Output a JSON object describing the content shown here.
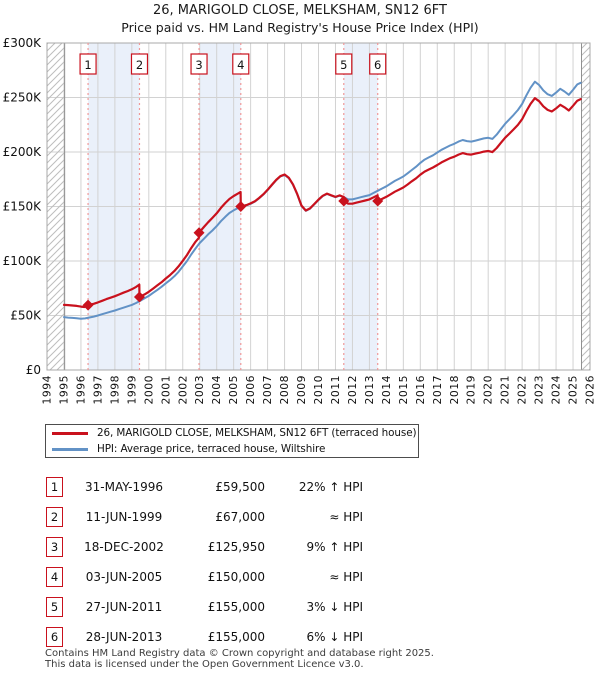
{
  "page": {
    "title": "26, MARIGOLD CLOSE, MELKSHAM, SN12 6FT",
    "subtitle": "Price paid vs. HM Land Registry's House Price Index (HPI)"
  },
  "legend": {
    "items": [
      {
        "label": "26, MARIGOLD CLOSE, MELKSHAM, SN12 6FT (terraced house)",
        "color": "#c9111d"
      },
      {
        "label": "HPI: Average price, terraced house, Wiltshire",
        "color": "#6292c6"
      }
    ]
  },
  "table": {
    "rows": [
      {
        "num": "1",
        "date": "31-MAY-1996",
        "price": "£59,500",
        "delta": "22% ↑ HPI"
      },
      {
        "num": "2",
        "date": "11-JUN-1999",
        "price": "£67,000",
        "delta": "≈ HPI"
      },
      {
        "num": "3",
        "date": "18-DEC-2002",
        "price": "£125,950",
        "delta": "9% ↑ HPI"
      },
      {
        "num": "4",
        "date": "03-JUN-2005",
        "price": "£150,000",
        "delta": "≈ HPI"
      },
      {
        "num": "5",
        "date": "27-JUN-2011",
        "price": "£155,000",
        "delta": "3% ↓ HPI"
      },
      {
        "num": "6",
        "date": "28-JUN-2013",
        "price": "£155,000",
        "delta": "6% ↓ HPI"
      }
    ]
  },
  "footer": {
    "line1": "Contains HM Land Registry data © Crown copyright and database right 2025.",
    "line2": "This data is licensed under the Open Government Licence v3.0."
  },
  "chart_data": {
    "type": "line",
    "title": "26, MARIGOLD CLOSE, MELKSHAM, SN12 6FT",
    "subtitle": "Price paid vs. HM Land Registry's House Price Index (HPI)",
    "xlabel": "",
    "ylabel": "",
    "units": "GBP thousands",
    "grid": true,
    "legend_position": "below",
    "x_axis": {
      "min": 1994,
      "max": 2026,
      "ticks": [
        1994,
        1995,
        1996,
        1997,
        1998,
        1999,
        2000,
        2001,
        2002,
        2003,
        2004,
        2005,
        2006,
        2007,
        2008,
        2009,
        2010,
        2011,
        2012,
        2013,
        2014,
        2015,
        2016,
        2017,
        2018,
        2019,
        2020,
        2021,
        2022,
        2023,
        2024,
        2025,
        2026
      ]
    },
    "y_axis": {
      "min_k": 0,
      "max_k": 300,
      "tick_values_k": [
        0,
        50,
        100,
        150,
        200,
        250,
        300
      ],
      "tick_labels": [
        "£0",
        "£50K",
        "£100K",
        "£150K",
        "£200K",
        "£250K",
        "£300K"
      ]
    },
    "colors": {
      "price_paid": "#c9111d",
      "hpi": "#6292c6",
      "band": "#eaf0fa",
      "dashed": "#f09898",
      "grid": "#d2d2d2",
      "frame": "#a8a8a8",
      "hatch": "#bdbdbd",
      "hatch_edge": "#8f8f8f",
      "text": "#111111"
    },
    "ownership_bands": [
      [
        1996.42,
        1999.45
      ],
      [
        2002.96,
        2005.42
      ],
      [
        2011.49,
        2013.49
      ]
    ],
    "no_data_bands": [
      [
        1994,
        1995.04
      ],
      [
        2025.5,
        2026
      ]
    ],
    "sale_markers": [
      {
        "n": "1",
        "year": 1996.42,
        "price_k": 59.5
      },
      {
        "n": "2",
        "year": 1999.45,
        "price_k": 67.0
      },
      {
        "n": "3",
        "year": 2002.96,
        "price_k": 125.95
      },
      {
        "n": "4",
        "year": 2005.42,
        "price_k": 150.0
      },
      {
        "n": "5",
        "year": 2011.49,
        "price_k": 155.0
      },
      {
        "n": "6",
        "year": 2013.49,
        "price_k": 155.0
      }
    ],
    "series": [
      {
        "key": "hpi",
        "name": "HPI: Average price, terraced house, Wiltshire",
        "color": "#6292c6",
        "points": [
          [
            1995.0,
            48.5
          ],
          [
            1995.25,
            48.1
          ],
          [
            1995.5,
            47.8
          ],
          [
            1995.75,
            47.4
          ],
          [
            1996.0,
            47.1
          ],
          [
            1996.25,
            47.3
          ],
          [
            1996.5,
            48.2
          ],
          [
            1996.75,
            49.0
          ],
          [
            1997.0,
            50.0
          ],
          [
            1997.25,
            51.2
          ],
          [
            1997.5,
            52.4
          ],
          [
            1997.75,
            53.5
          ],
          [
            1998.0,
            54.6
          ],
          [
            1998.25,
            55.9
          ],
          [
            1998.5,
            57.2
          ],
          [
            1998.75,
            58.4
          ],
          [
            1999.0,
            59.7
          ],
          [
            1999.25,
            61.5
          ],
          [
            1999.5,
            63.6
          ],
          [
            1999.75,
            65.8
          ],
          [
            2000.0,
            68.0
          ],
          [
            2000.25,
            70.8
          ],
          [
            2000.5,
            73.5
          ],
          [
            2000.75,
            76.3
          ],
          [
            2001.0,
            79.5
          ],
          [
            2001.25,
            82.5
          ],
          [
            2001.5,
            86.0
          ],
          [
            2001.75,
            90.0
          ],
          [
            2002.0,
            95.0
          ],
          [
            2002.25,
            100.0
          ],
          [
            2002.5,
            106.0
          ],
          [
            2002.75,
            111.5
          ],
          [
            2003.0,
            116.5
          ],
          [
            2003.25,
            120.5
          ],
          [
            2003.5,
            124.5
          ],
          [
            2003.75,
            128.0
          ],
          [
            2004.0,
            132.0
          ],
          [
            2004.25,
            136.5
          ],
          [
            2004.5,
            140.5
          ],
          [
            2004.75,
            144.0
          ],
          [
            2005.0,
            146.5
          ],
          [
            2005.25,
            148.5
          ],
          [
            2005.5,
            150.0
          ],
          [
            2005.75,
            151.0
          ],
          [
            2006.0,
            152.5
          ],
          [
            2006.25,
            154.5
          ],
          [
            2006.5,
            157.5
          ],
          [
            2006.75,
            161.0
          ],
          [
            2007.0,
            165.0
          ],
          [
            2007.25,
            169.5
          ],
          [
            2007.5,
            174.0
          ],
          [
            2007.75,
            177.5
          ],
          [
            2008.0,
            179.0
          ],
          [
            2008.25,
            176.0
          ],
          [
            2008.5,
            170.0
          ],
          [
            2008.75,
            161.0
          ],
          [
            2009.0,
            150.5
          ],
          [
            2009.25,
            146.0
          ],
          [
            2009.5,
            148.0
          ],
          [
            2009.75,
            152.0
          ],
          [
            2010.0,
            156.0
          ],
          [
            2010.25,
            159.5
          ],
          [
            2010.5,
            161.5
          ],
          [
            2010.75,
            160.0
          ],
          [
            2011.0,
            158.5
          ],
          [
            2011.25,
            160.0
          ],
          [
            2011.5,
            158.5
          ],
          [
            2011.75,
            156.5
          ],
          [
            2012.0,
            156.5
          ],
          [
            2012.25,
            157.5
          ],
          [
            2012.5,
            158.5
          ],
          [
            2012.75,
            159.5
          ],
          [
            2013.0,
            160.5
          ],
          [
            2013.25,
            162.5
          ],
          [
            2013.5,
            164.5
          ],
          [
            2013.75,
            166.5
          ],
          [
            2014.0,
            168.5
          ],
          [
            2014.25,
            171.0
          ],
          [
            2014.5,
            173.5
          ],
          [
            2014.75,
            175.5
          ],
          [
            2015.0,
            177.5
          ],
          [
            2015.25,
            180.5
          ],
          [
            2015.5,
            183.5
          ],
          [
            2015.75,
            186.5
          ],
          [
            2016.0,
            190.0
          ],
          [
            2016.25,
            193.0
          ],
          [
            2016.5,
            195.0
          ],
          [
            2016.75,
            197.0
          ],
          [
            2017.0,
            199.5
          ],
          [
            2017.25,
            202.0
          ],
          [
            2017.5,
            204.0
          ],
          [
            2017.75,
            206.0
          ],
          [
            2018.0,
            207.5
          ],
          [
            2018.25,
            209.5
          ],
          [
            2018.5,
            211.0
          ],
          [
            2018.75,
            210.0
          ],
          [
            2019.0,
            209.5
          ],
          [
            2019.25,
            210.5
          ],
          [
            2019.5,
            211.5
          ],
          [
            2019.75,
            212.5
          ],
          [
            2020.0,
            213.0
          ],
          [
            2020.25,
            212.0
          ],
          [
            2020.5,
            216.0
          ],
          [
            2020.75,
            221.0
          ],
          [
            2021.0,
            226.0
          ],
          [
            2021.25,
            230.0
          ],
          [
            2021.5,
            234.0
          ],
          [
            2021.75,
            238.5
          ],
          [
            2022.0,
            244.0
          ],
          [
            2022.25,
            252.0
          ],
          [
            2022.5,
            259.0
          ],
          [
            2022.75,
            264.5
          ],
          [
            2023.0,
            261.5
          ],
          [
            2023.25,
            256.5
          ],
          [
            2023.5,
            253.0
          ],
          [
            2023.75,
            251.5
          ],
          [
            2024.0,
            254.5
          ],
          [
            2024.25,
            258.0
          ],
          [
            2024.5,
            255.5
          ],
          [
            2024.75,
            252.5
          ],
          [
            2025.0,
            257.0
          ],
          [
            2025.25,
            262.0
          ],
          [
            2025.45,
            263.5
          ]
        ]
      },
      {
        "key": "price_paid",
        "name": "26, MARIGOLD CLOSE, MELKSHAM, SN12 6FT (terraced house)",
        "color": "#c9111d",
        "points": [
          [
            1995.0,
            59.7
          ],
          [
            1995.25,
            59.5
          ],
          [
            1995.5,
            59.2
          ],
          [
            1995.75,
            58.8
          ],
          [
            1996.0,
            58.2
          ],
          [
            1996.2,
            57.8
          ],
          [
            1996.42,
            59.5
          ],
          [
            1996.5,
            59.8
          ],
          [
            1996.75,
            60.7
          ],
          [
            1997.0,
            62.0
          ],
          [
            1997.25,
            63.5
          ],
          [
            1997.5,
            65.0
          ],
          [
            1997.75,
            66.3
          ],
          [
            1998.0,
            67.7
          ],
          [
            1998.25,
            69.3
          ],
          [
            1998.5,
            70.9
          ],
          [
            1998.75,
            72.4
          ],
          [
            1999.0,
            74.0
          ],
          [
            1999.25,
            76.2
          ],
          [
            1999.44,
            78.3
          ],
          [
            1999.45,
            67.0
          ],
          [
            1999.75,
            69.4
          ],
          [
            2000.0,
            71.7
          ],
          [
            2000.25,
            74.7
          ],
          [
            2000.5,
            77.6
          ],
          [
            2000.75,
            80.5
          ],
          [
            2001.0,
            83.9
          ],
          [
            2001.25,
            87.1
          ],
          [
            2001.5,
            90.7
          ],
          [
            2001.75,
            95.0
          ],
          [
            2002.0,
            100.2
          ],
          [
            2002.25,
            105.5
          ],
          [
            2002.5,
            111.8
          ],
          [
            2002.75,
            117.6
          ],
          [
            2002.95,
            121.3
          ],
          [
            2002.96,
            125.95
          ],
          [
            2003.25,
            131.3
          ],
          [
            2003.5,
            135.6
          ],
          [
            2003.75,
            139.5
          ],
          [
            2004.0,
            143.8
          ],
          [
            2004.25,
            148.7
          ],
          [
            2004.5,
            153.1
          ],
          [
            2004.75,
            156.9
          ],
          [
            2005.0,
            159.6
          ],
          [
            2005.25,
            161.8
          ],
          [
            2005.41,
            163.3
          ],
          [
            2005.42,
            150.0
          ],
          [
            2005.75,
            151.3
          ],
          [
            2006.0,
            152.8
          ],
          [
            2006.25,
            154.8
          ],
          [
            2006.5,
            157.8
          ],
          [
            2006.75,
            161.3
          ],
          [
            2007.0,
            165.3
          ],
          [
            2007.25,
            169.8
          ],
          [
            2007.5,
            174.3
          ],
          [
            2007.75,
            177.8
          ],
          [
            2008.0,
            179.4
          ],
          [
            2008.25,
            176.4
          ],
          [
            2008.5,
            170.3
          ],
          [
            2008.75,
            161.3
          ],
          [
            2009.0,
            150.8
          ],
          [
            2009.25,
            146.3
          ],
          [
            2009.5,
            148.3
          ],
          [
            2009.75,
            152.3
          ],
          [
            2010.0,
            156.3
          ],
          [
            2010.25,
            159.8
          ],
          [
            2010.5,
            161.8
          ],
          [
            2010.75,
            160.3
          ],
          [
            2011.0,
            158.8
          ],
          [
            2011.25,
            160.2
          ],
          [
            2011.48,
            158.7
          ],
          [
            2011.49,
            155.0
          ],
          [
            2011.75,
            152.6
          ],
          [
            2012.0,
            152.6
          ],
          [
            2012.25,
            153.6
          ],
          [
            2012.5,
            154.5
          ],
          [
            2012.75,
            155.5
          ],
          [
            2013.0,
            156.5
          ],
          [
            2013.25,
            158.4
          ],
          [
            2013.48,
            160.3
          ],
          [
            2013.49,
            155.0
          ],
          [
            2013.75,
            157.0
          ],
          [
            2014.0,
            158.9
          ],
          [
            2014.25,
            161.2
          ],
          [
            2014.5,
            163.6
          ],
          [
            2014.75,
            165.5
          ],
          [
            2015.0,
            167.4
          ],
          [
            2015.25,
            170.2
          ],
          [
            2015.5,
            173.1
          ],
          [
            2015.75,
            175.9
          ],
          [
            2016.0,
            179.2
          ],
          [
            2016.25,
            182.0
          ],
          [
            2016.5,
            183.9
          ],
          [
            2016.75,
            185.8
          ],
          [
            2017.0,
            188.1
          ],
          [
            2017.25,
            190.5
          ],
          [
            2017.5,
            192.4
          ],
          [
            2017.75,
            194.3
          ],
          [
            2018.0,
            195.7
          ],
          [
            2018.25,
            197.6
          ],
          [
            2018.5,
            199.0
          ],
          [
            2018.75,
            198.0
          ],
          [
            2019.0,
            197.6
          ],
          [
            2019.25,
            198.5
          ],
          [
            2019.5,
            199.4
          ],
          [
            2019.75,
            200.4
          ],
          [
            2020.0,
            200.9
          ],
          [
            2020.25,
            199.9
          ],
          [
            2020.5,
            203.7
          ],
          [
            2020.75,
            208.4
          ],
          [
            2021.0,
            213.1
          ],
          [
            2021.25,
            216.9
          ],
          [
            2021.5,
            220.7
          ],
          [
            2021.75,
            224.9
          ],
          [
            2022.0,
            230.1
          ],
          [
            2022.25,
            237.6
          ],
          [
            2022.5,
            244.2
          ],
          [
            2022.75,
            249.4
          ],
          [
            2023.0,
            246.6
          ],
          [
            2023.25,
            241.9
          ],
          [
            2023.5,
            238.6
          ],
          [
            2023.75,
            237.2
          ],
          [
            2024.0,
            240.0
          ],
          [
            2024.25,
            243.3
          ],
          [
            2024.5,
            241.0
          ],
          [
            2024.75,
            238.1
          ],
          [
            2025.0,
            242.4
          ],
          [
            2025.25,
            247.1
          ],
          [
            2025.45,
            248.5
          ]
        ]
      }
    ]
  }
}
